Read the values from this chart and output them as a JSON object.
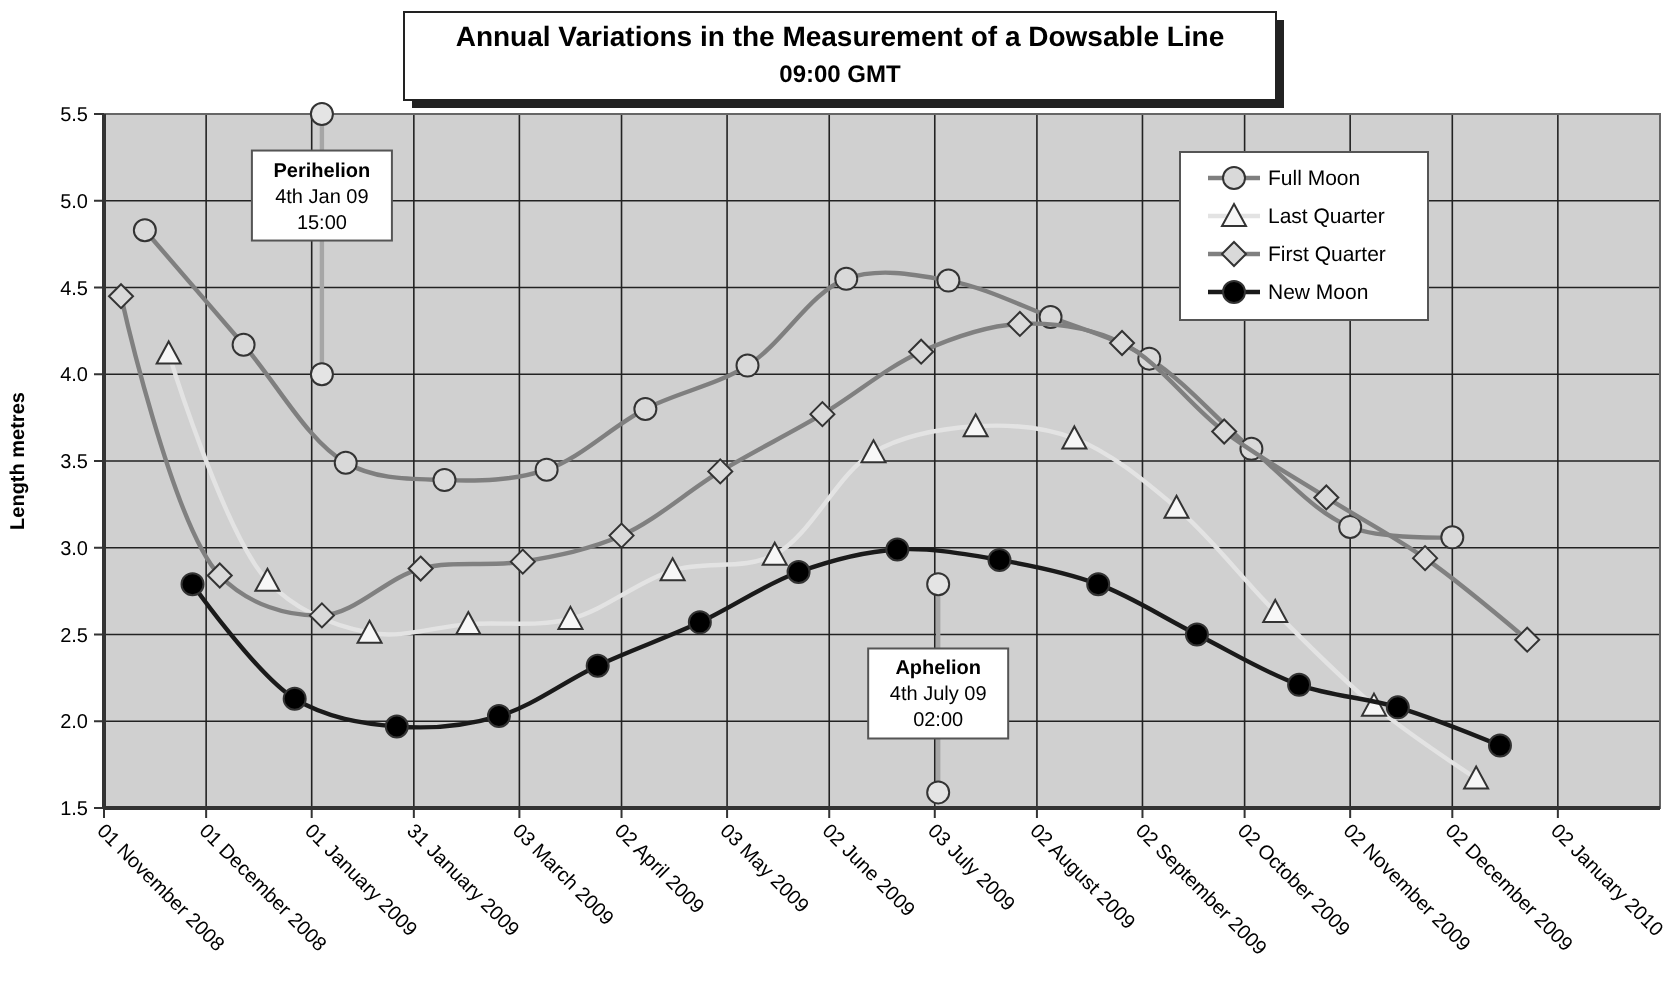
{
  "chart_data": {
    "type": "line",
    "title": "Annual Variations in the Measurement of a Dowsable Line",
    "subtitle": "09:00 GMT",
    "ylabel": "Length  metres",
    "xlim": [
      "2008-11-01",
      "2010-02-01"
    ],
    "xticks": [
      {
        "value": "2008-11-01",
        "label": "01 November 2008"
      },
      {
        "value": "2008-12-01",
        "label": "01 December 2008"
      },
      {
        "value": "2009-01-01",
        "label": "01 January 2009"
      },
      {
        "value": "2009-01-31",
        "label": "31 January 2009"
      },
      {
        "value": "2009-03-03",
        "label": "03 March 2009"
      },
      {
        "value": "2009-04-02",
        "label": "02 April 2009"
      },
      {
        "value": "2009-05-03",
        "label": "03 May 2009"
      },
      {
        "value": "2009-06-02",
        "label": "02 June 2009"
      },
      {
        "value": "2009-07-03",
        "label": "03 July 2009"
      },
      {
        "value": "2009-08-02",
        "label": "02 August 2009"
      },
      {
        "value": "2009-09-02",
        "label": "02 September 2009"
      },
      {
        "value": "2009-10-02",
        "label": "02 October 2009"
      },
      {
        "value": "2009-11-02",
        "label": "02 November 2009"
      },
      {
        "value": "2009-12-02",
        "label": "02 December 2009"
      },
      {
        "value": "2010-01-02",
        "label": "02 January 2010"
      }
    ],
    "ylim": [
      1.5,
      5.5
    ],
    "yticks": [
      1.5,
      {
        "value": 2,
        "label": "2.0"
      },
      2.5,
      {
        "value": 3,
        "label": "3.0"
      },
      3.5,
      {
        "value": 4,
        "label": "4.0"
      },
      4.5,
      {
        "value": 5,
        "label": "5.0"
      },
      5.5
    ],
    "grid": true,
    "legend": "top right",
    "series": [
      {
        "name": "Full Moon",
        "color": "#7f7f7f",
        "marker": "circle",
        "x": [
          "2008-11-13",
          "2008-12-12",
          "2009-01-11",
          "2009-02-09",
          "2009-03-11",
          "2009-04-09",
          "2009-05-09",
          "2009-06-07",
          "2009-07-07",
          "2009-08-06",
          "2009-09-04",
          "2009-10-04",
          "2009-11-02",
          "2009-12-02"
        ],
        "values": [
          4.83,
          4.17,
          3.49,
          3.39,
          3.45,
          3.8,
          4.05,
          4.55,
          4.54,
          4.33,
          4.09,
          3.57,
          3.12,
          3.06
        ]
      },
      {
        "name": "Last Quarter",
        "color": "#e3e3e3",
        "marker": "triangle",
        "x": [
          "2008-11-20",
          "2008-12-19",
          "2009-01-18",
          "2009-02-16",
          "2009-03-18",
          "2009-04-17",
          "2009-05-17",
          "2009-06-15",
          "2009-07-15",
          "2009-08-13",
          "2009-09-12",
          "2009-10-11",
          "2009-11-09",
          "2009-12-09"
        ],
        "values": [
          4.12,
          2.81,
          2.51,
          2.56,
          2.59,
          2.87,
          2.96,
          3.55,
          3.7,
          3.63,
          3.23,
          2.63,
          2.09,
          1.67
        ]
      },
      {
        "name": "First Quarter",
        "color": "#808080",
        "marker": "diamond",
        "x": [
          "2008-11-06",
          "2008-12-05",
          "2009-01-04",
          "2009-02-02",
          "2009-03-04",
          "2009-04-02",
          "2009-05-01",
          "2009-05-31",
          "2009-06-29",
          "2009-07-28",
          "2009-08-27",
          "2009-09-26",
          "2009-10-26",
          "2009-11-24",
          "2009-12-24"
        ],
        "values": [
          4.45,
          2.84,
          2.61,
          2.88,
          2.92,
          3.07,
          3.44,
          3.77,
          4.13,
          4.29,
          4.18,
          3.67,
          3.29,
          2.94,
          2.47
        ]
      },
      {
        "name": "New Moon",
        "color": "#1a1a1a",
        "marker": "circle",
        "x": [
          "2008-11-27",
          "2008-12-27",
          "2009-01-26",
          "2009-02-25",
          "2009-03-26",
          "2009-04-25",
          "2009-05-24",
          "2009-06-22",
          "2009-07-22",
          "2009-08-20",
          "2009-09-18",
          "2009-10-18",
          "2009-11-16",
          "2009-12-16"
        ],
        "values": [
          2.79,
          2.13,
          1.97,
          2.03,
          2.32,
          2.57,
          2.86,
          2.99,
          2.93,
          2.79,
          2.5,
          2.21,
          2.08,
          1.86
        ]
      },
      {
        "color": "#a6a6a6",
        "marker": "circle",
        "x": [
          "2009-01-04",
          "2009-01-04"
        ],
        "values": [
          5.5,
          4.0
        ]
      },
      {
        "color": "#a6a6a6",
        "marker": "circle",
        "x": [
          "2009-07-04",
          "2009-07-04"
        ],
        "values": [
          2.79,
          1.59
        ]
      }
    ],
    "annotations": [
      {
        "text": "Perihelion\n4th Jan 09\n15:00",
        "x": "2009-01-04",
        "y": 5.03
      },
      {
        "text": "Aphelion\n4th July 09\n02:00",
        "x": "2009-07-04",
        "y": 2.16
      }
    ]
  }
}
